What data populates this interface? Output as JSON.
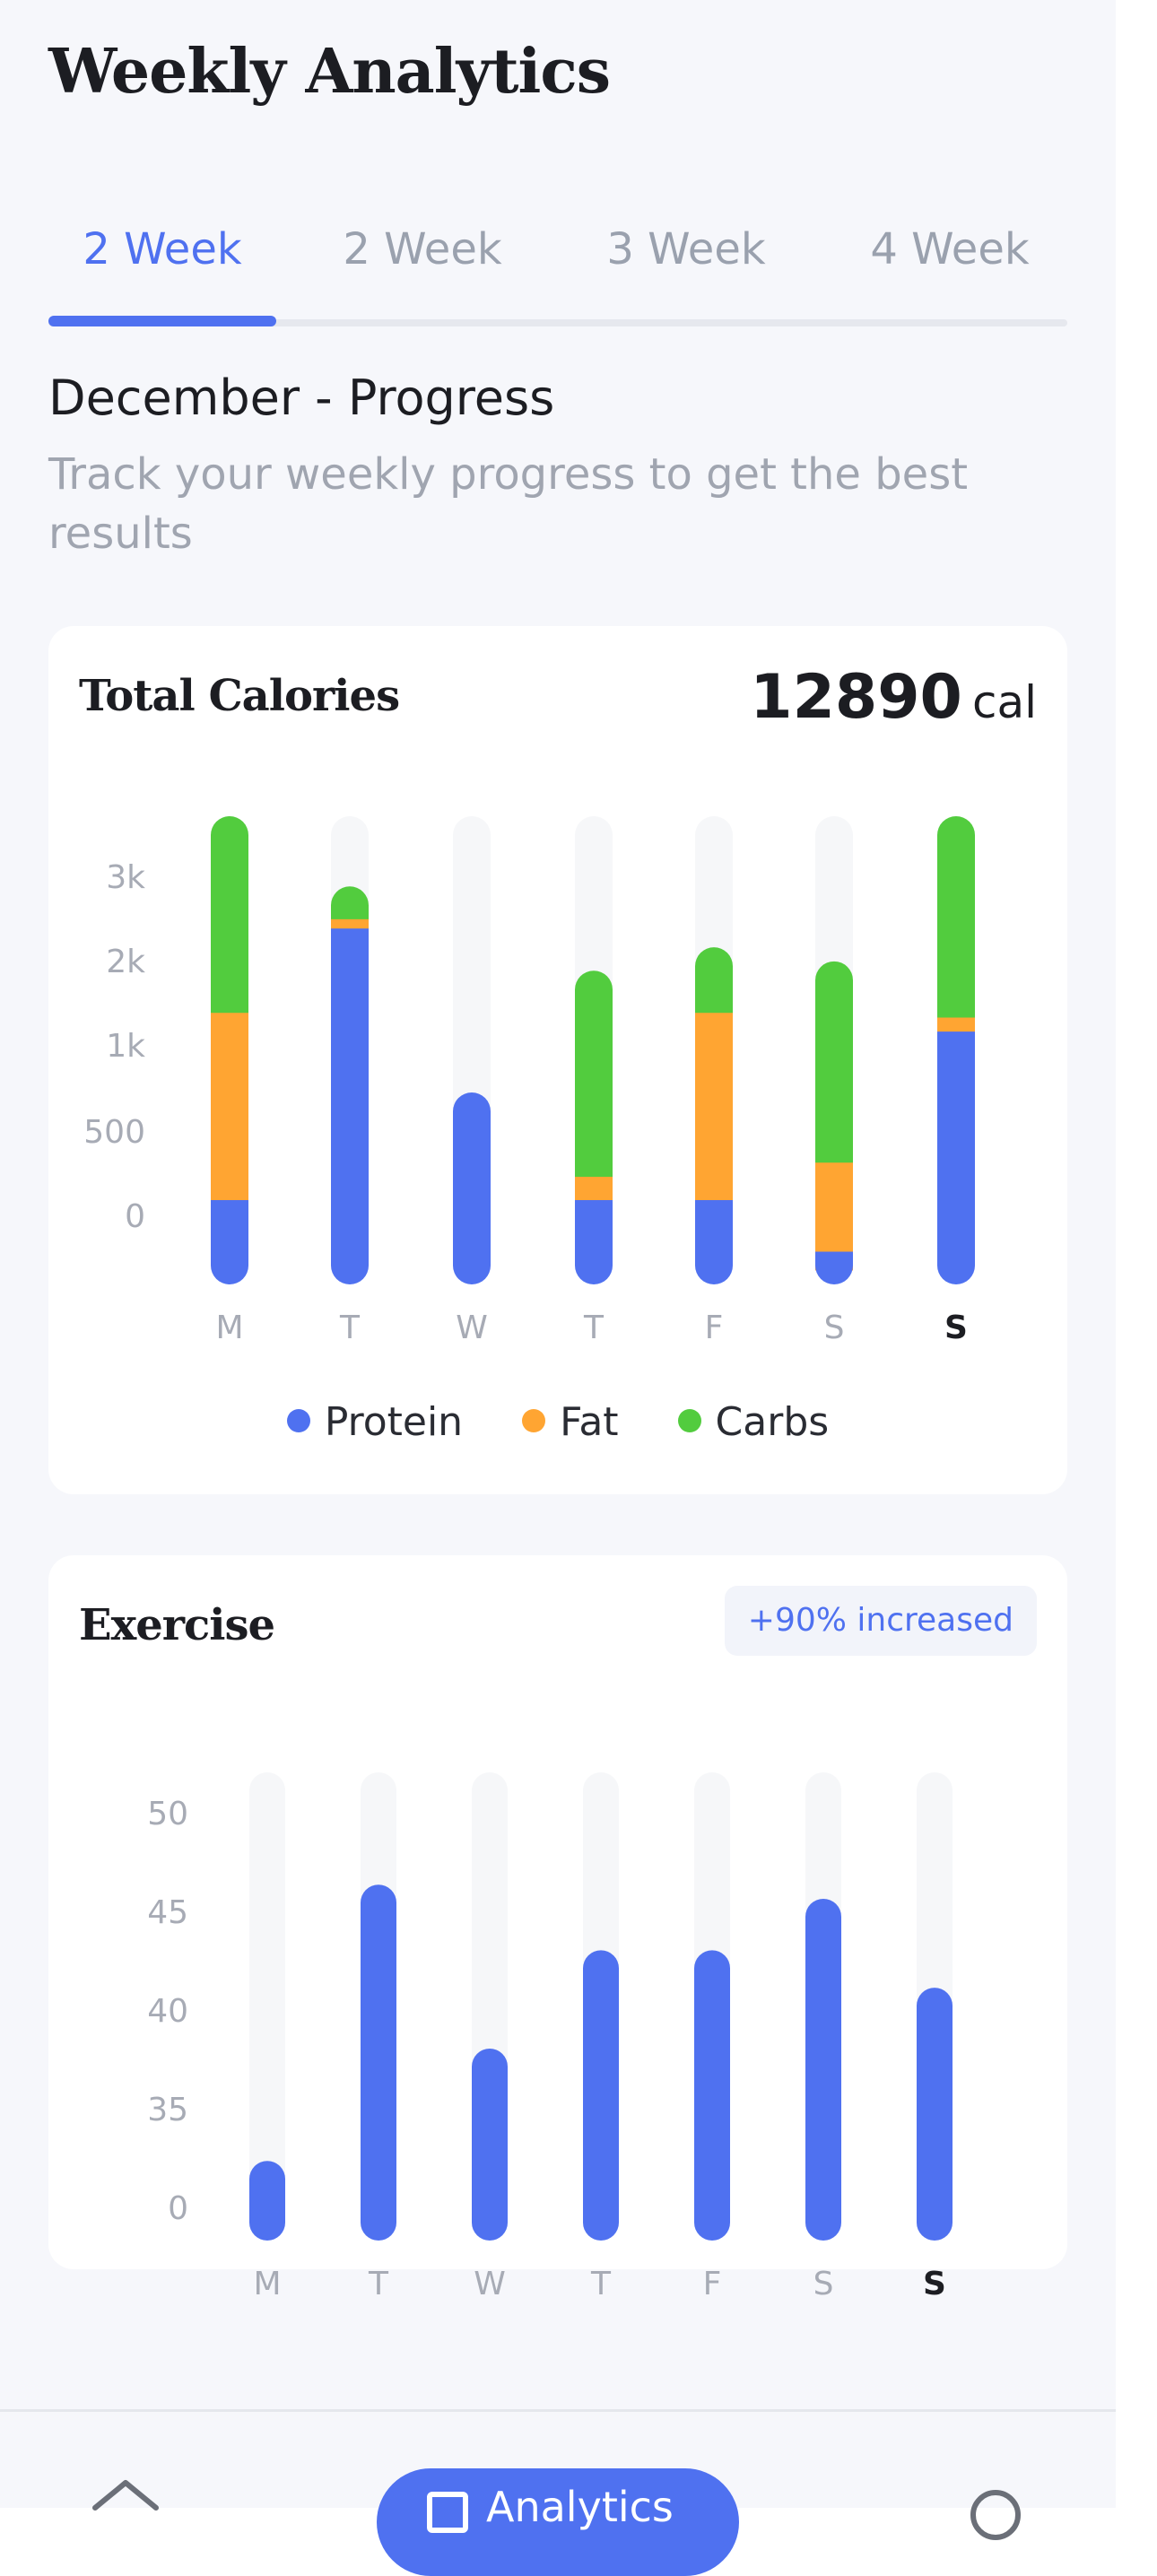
{
  "page": {
    "title": "Weekly Analytics"
  },
  "tabs": [
    {
      "label": "2 Week",
      "active": true
    },
    {
      "label": "2 Week",
      "active": false
    },
    {
      "label": "3 Week",
      "active": false
    },
    {
      "label": "4 Week",
      "active": false
    }
  ],
  "progress": {
    "title": "December - Progress",
    "subtitle": "Track your weekly progress to get the best results"
  },
  "calories_card": {
    "title": "Total Calories",
    "total_value": "12890",
    "total_unit": "cal",
    "legend": [
      {
        "label": "Protein",
        "color": "#4f71f0"
      },
      {
        "label": "Fat",
        "color": "#ffa532"
      },
      {
        "label": "Carbs",
        "color": "#52cc3e"
      }
    ]
  },
  "exercise_card": {
    "title": "Exercise",
    "badge": "+90% increased"
  },
  "bottom_nav": {
    "home_icon": "home-icon",
    "active_label": "Analytics",
    "active_icon": "chart-icon",
    "profile_icon": "profile-icon"
  },
  "chart_data": [
    {
      "type": "bar",
      "stacked": true,
      "title": "Total Calories",
      "categories": [
        "M",
        "T",
        "W",
        "T",
        "F",
        "S",
        "S"
      ],
      "highlight_category_index": 6,
      "y_tick_labels": [
        "0",
        "500",
        "1k",
        "2k",
        "3k"
      ],
      "series": [
        {
          "name": "Protein",
          "color": "#4f71f0",
          "values": [
            0.18,
            0.76,
            0.41,
            0.18,
            0.18,
            0.07,
            0.54
          ]
        },
        {
          "name": "Fat",
          "color": "#ffa532",
          "values": [
            0.4,
            0.02,
            0,
            0.05,
            0.4,
            0.19,
            0.03
          ]
        },
        {
          "name": "Carbs",
          "color": "#52cc3e",
          "values": [
            0.42,
            0.07,
            0,
            0.44,
            0.14,
            0.43,
            0.43
          ]
        }
      ],
      "value_unit": "fraction of bar track"
    },
    {
      "type": "bar",
      "title": "Exercise",
      "categories": [
        "M",
        "T",
        "W",
        "T",
        "F",
        "S",
        "S"
      ],
      "highlight_category_index": 6,
      "y_tick_labels": [
        "0",
        "35",
        "40",
        "45",
        "50"
      ],
      "values": [
        0.17,
        0.76,
        0.41,
        0.62,
        0.62,
        0.73,
        0.54
      ],
      "value_unit": "fraction of bar track",
      "color": "#4f71f0"
    }
  ]
}
